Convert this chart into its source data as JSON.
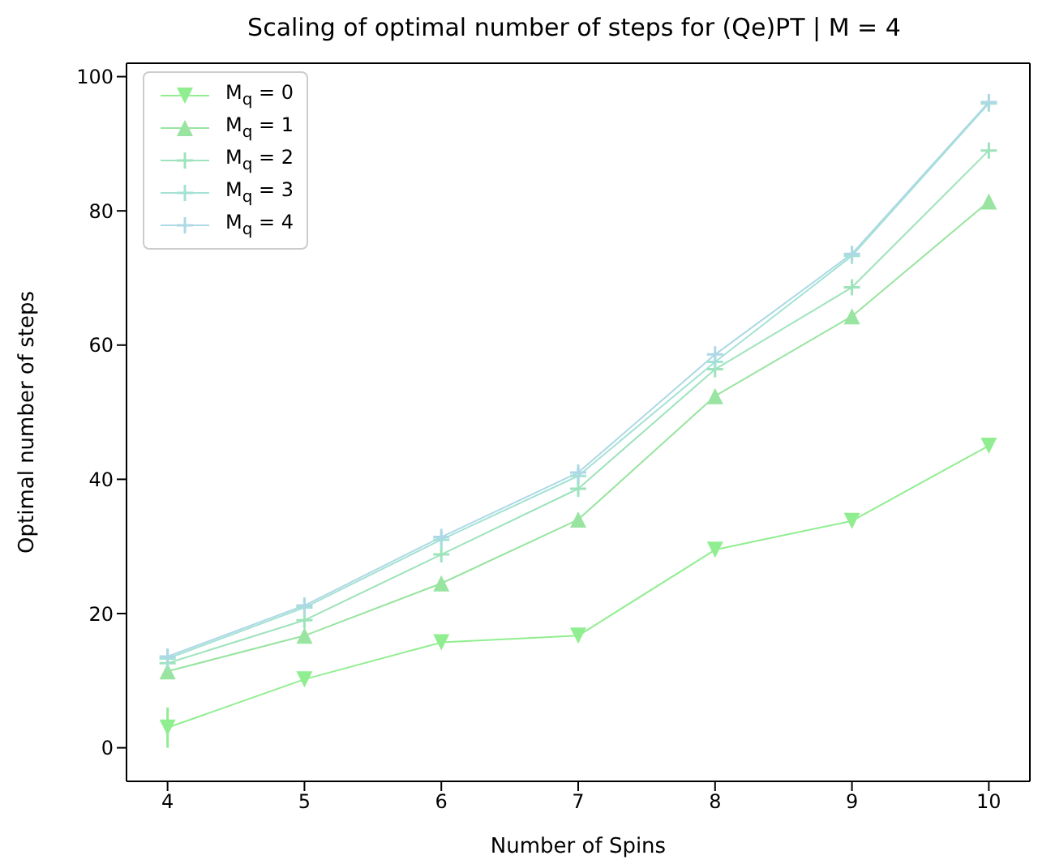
{
  "chart_data": {
    "type": "line",
    "title": "Scaling of optimal number of steps for (Qe)PT | M = 4",
    "xlabel": "Number of Spins",
    "ylabel": "Optimal number of steps",
    "x": [
      4,
      5,
      6,
      7,
      8,
      9,
      10
    ],
    "series": [
      {
        "name": "M$_{q}$ = 0",
        "color": "#90ee90",
        "marker": "triangle",
        "values": [
          3,
          10.2,
          15.7,
          16.7,
          29.5,
          33.8,
          45
        ],
        "errors": [
          3,
          null,
          null,
          null,
          null,
          null,
          null
        ]
      },
      {
        "name": "M$_{q}$ = 1",
        "color": "#98e4a0",
        "marker": "triangle",
        "values": [
          11.4,
          16.7,
          24.5,
          34,
          52.4,
          64.3,
          81.4
        ]
      },
      {
        "name": "M$_{q}$ = 2",
        "color": "#9ee3bc",
        "marker": "cross",
        "values": [
          12.6,
          19,
          28.8,
          38.6,
          56.4,
          68.6,
          89
        ]
      },
      {
        "name": "M$_{q}$ = 3",
        "color": "#a4e2d4",
        "marker": "cross",
        "values": [
          13.3,
          20.9,
          31,
          40.5,
          57.5,
          73.3,
          96
        ]
      },
      {
        "name": "M$_{q}$ = 4",
        "color": "#add8e6",
        "marker": "cross",
        "values": [
          13.6,
          21.2,
          31.4,
          41,
          58.6,
          73.6,
          96.2
        ]
      }
    ],
    "xlim": [
      3.7,
      10.3
    ],
    "xticks": [
      4,
      5,
      6,
      7,
      8,
      9,
      10
    ],
    "ylim": [
      -5,
      102
    ],
    "yticks": [
      0,
      20,
      40,
      60,
      80,
      100
    ],
    "grid": false,
    "legend": "top left",
    "line_style": "solid"
  }
}
